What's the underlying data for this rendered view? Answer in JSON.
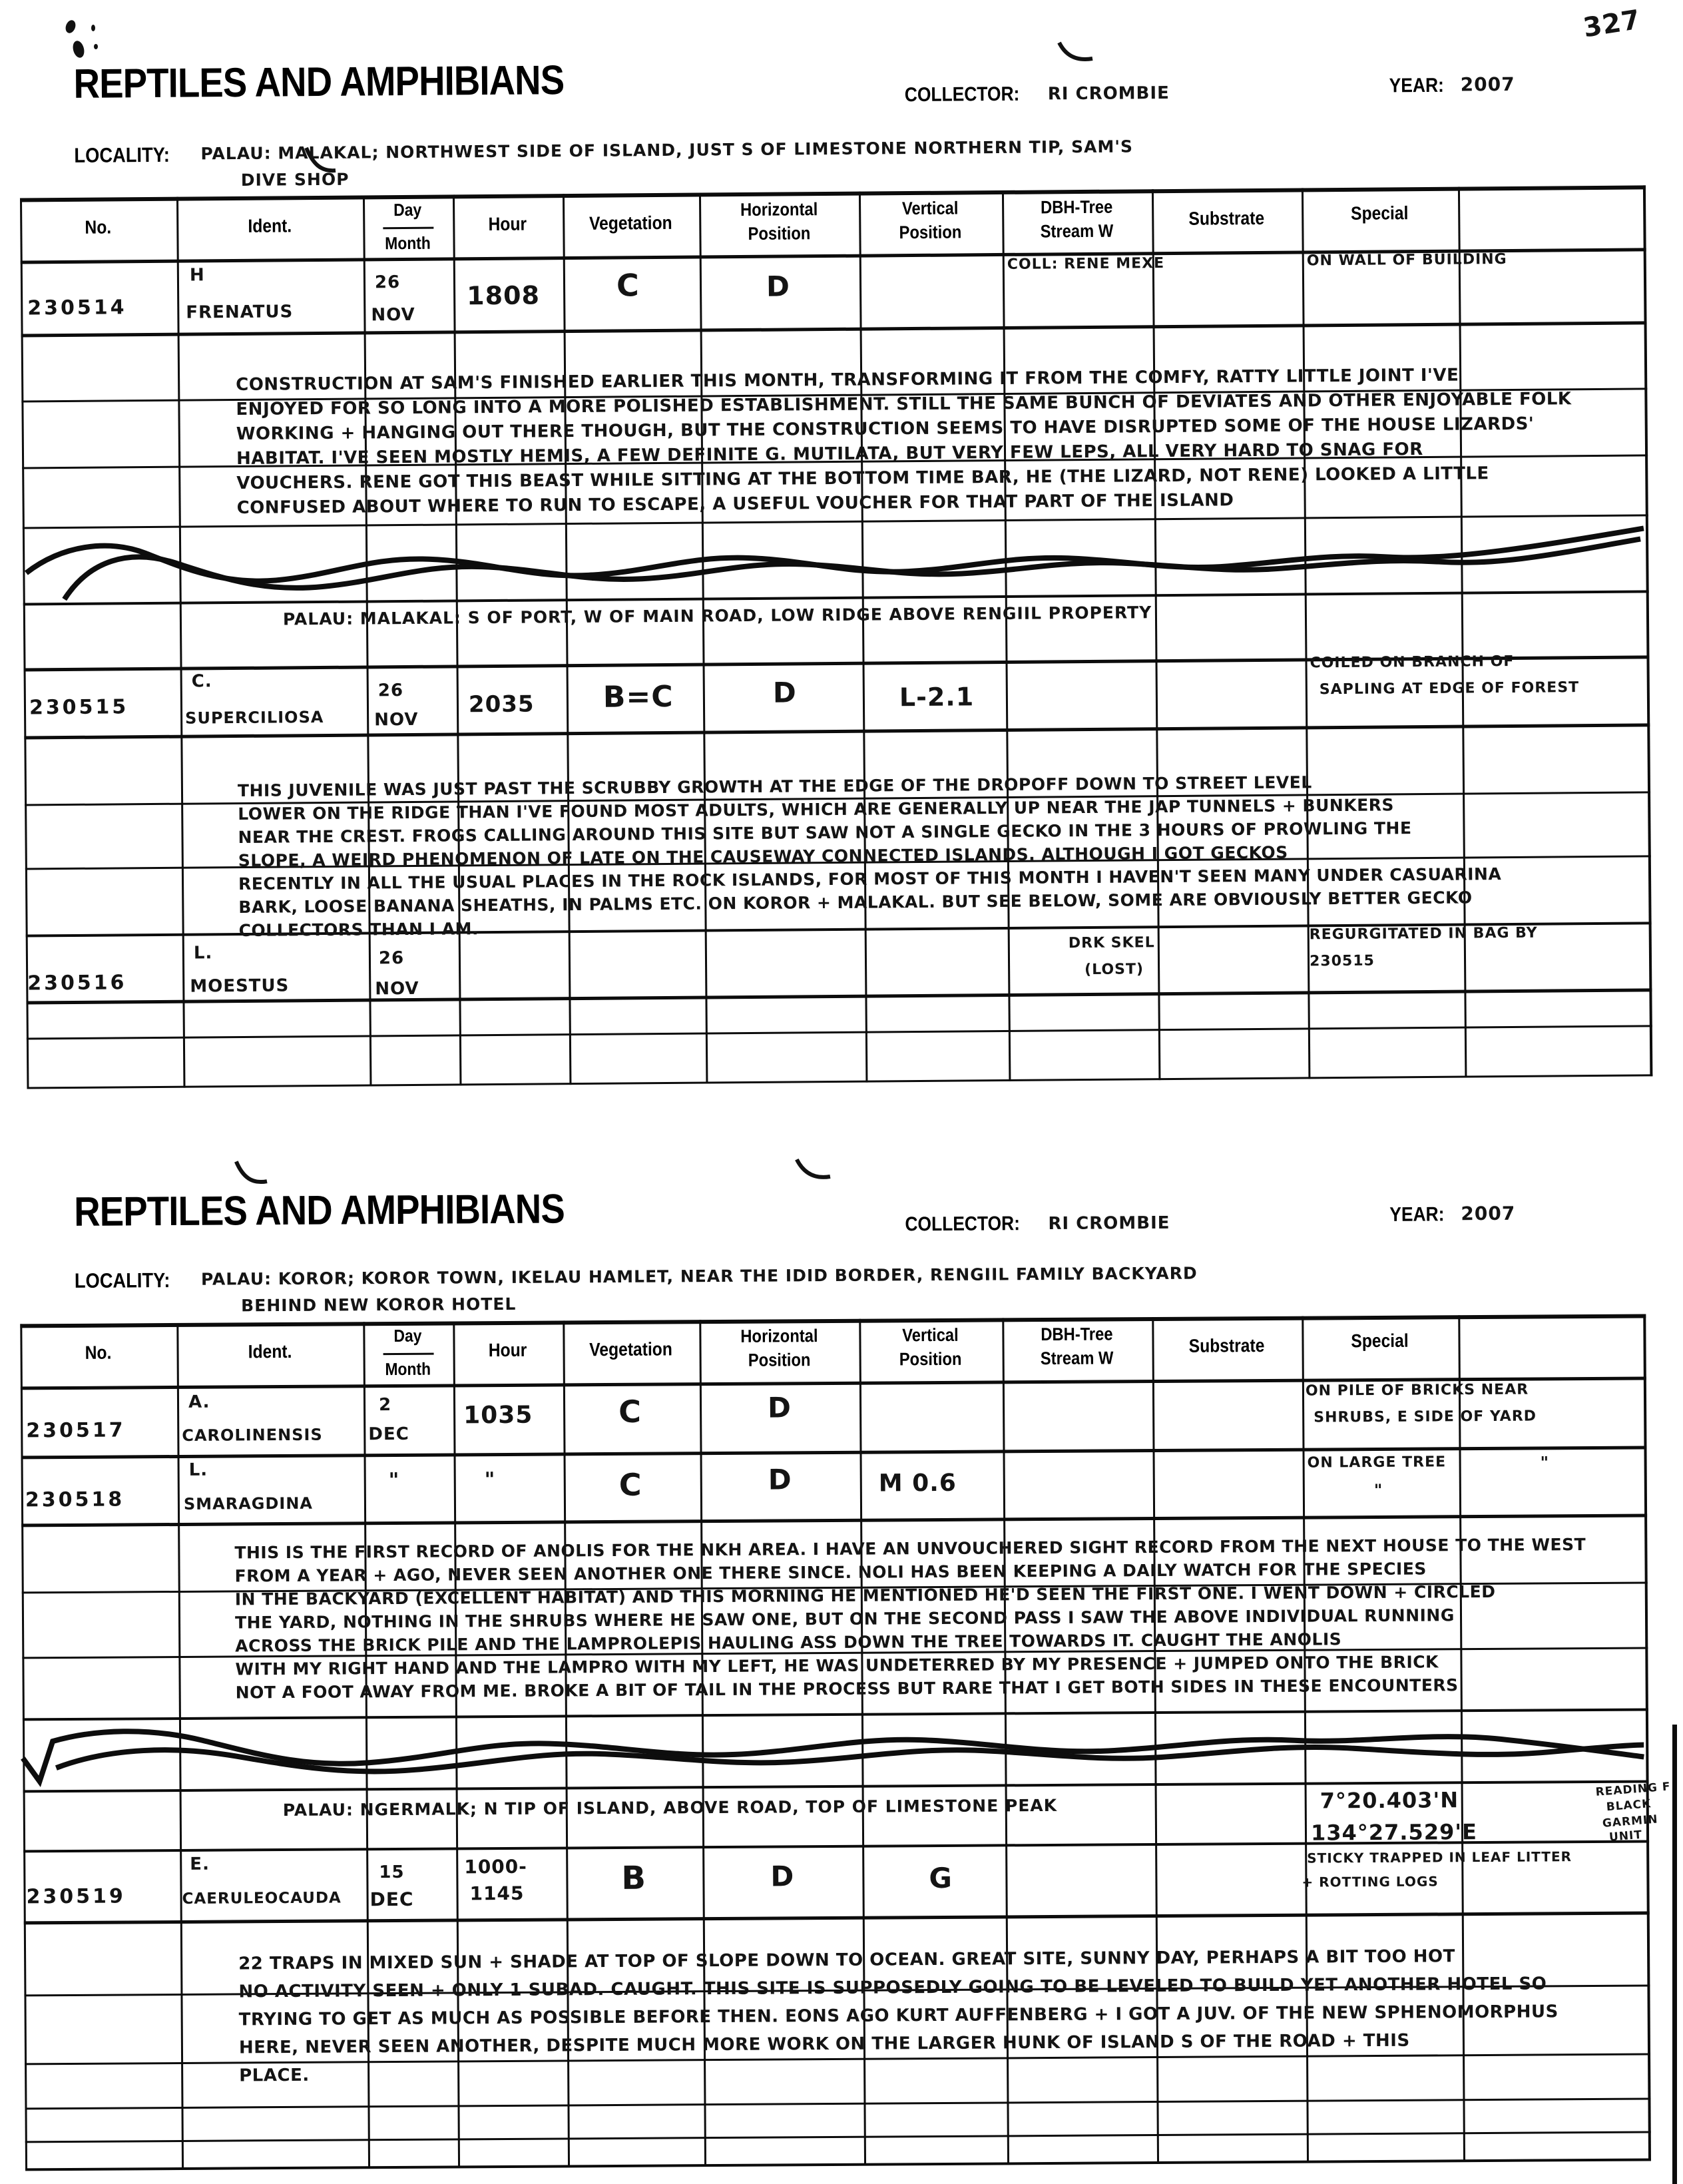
{
  "page": {
    "number": "327"
  },
  "cols": {
    "no": "No.",
    "ident": "Ident.",
    "day": "Day",
    "month": "Month",
    "hour": "Hour",
    "veg": "Vegetation",
    "hpos1": "Horizontal",
    "hpos2": "Position",
    "vpos1": "Vertical",
    "vpos2": "Position",
    "dbh1": "DBH-Tree",
    "dbh2": "Stream W",
    "substrate": "Substrate",
    "special": "Special"
  },
  "form1": {
    "title": "REPTILES AND AMPHIBIANS",
    "collector_label": "COLLECTOR:",
    "collector": "RI CROMBIE",
    "year_label": "YEAR:",
    "year": "2007",
    "locality_label": "LOCALITY:",
    "locality1": "PALAU: MALAKAL; NORTHWEST SIDE OF ISLAND, JUST S OF LIMESTONE NORTHERN TIP, SAM'S",
    "locality2": "DIVE SHOP",
    "r1": {
      "no": "230514",
      "sp1": "H",
      "sp2": "FRENATUS",
      "day": "26",
      "month": "NOV",
      "hour": "1808",
      "veg": "C",
      "hpos": "D",
      "dbh": "COLL: RENE MEXE",
      "special": "ON WALL OF BUILDING"
    },
    "notes1": [
      "CONSTRUCTION AT SAM'S FINISHED EARLIER THIS MONTH, TRANSFORMING IT FROM THE COMFY, RATTY LITTLE JOINT I'VE",
      "ENJOYED FOR SO LONG INTO A MORE POLISHED ESTABLISHMENT. STILL THE SAME BUNCH OF DEVIATES AND OTHER ENJOYABLE FOLK",
      "WORKING + HANGING OUT THERE THOUGH, BUT THE CONSTRUCTION SEEMS TO HAVE DISRUPTED SOME OF THE HOUSE LIZARDS'",
      "HABITAT. I'VE SEEN MOSTLY HEMIS, A FEW DEFINITE G. MUTILATA, BUT VERY FEW LEPS, ALL VERY HARD TO SNAG FOR",
      "VOUCHERS. RENE GOT THIS BEAST WHILE SITTING AT THE BOTTOM TIME BAR, HE (THE LIZARD, NOT RENE) LOOKED A LITTLE",
      "CONFUSED ABOUT WHERE TO RUN TO ESCAPE, A USEFUL VOUCHER FOR THAT PART OF THE ISLAND"
    ],
    "sub_locality": "PALAU: MALAKAL: S OF PORT, W OF MAIN ROAD, LOW RIDGE ABOVE RENGIIL PROPERTY",
    "r2": {
      "no": "230515",
      "sp1": "C.",
      "sp2": "SUPERCILIOSA",
      "day": "26",
      "month": "NOV",
      "hour": "2035",
      "veg": "B=C",
      "hpos": "D",
      "vpos": "L-2.1",
      "special1": "COILED ON BRANCH OF",
      "special2": "SAPLING AT EDGE OF FOREST"
    },
    "notes2": [
      "THIS JUVENILE WAS JUST PAST THE SCRUBBY GROWTH AT THE EDGE OF THE DROPOFF DOWN TO STREET LEVEL",
      "LOWER ON THE RIDGE THAN I'VE FOUND MOST ADULTS, WHICH ARE GENERALLY UP NEAR THE JAP TUNNELS + BUNKERS",
      "NEAR THE CREST. FROGS CALLING AROUND THIS SITE BUT SAW NOT A SINGLE GECKO IN THE 3 HOURS OF PROWLING THE",
      "SLOPE, A WEIRD PHENOMENON OF LATE ON THE CAUSEWAY CONNECTED ISLANDS. ALTHOUGH I GOT GECKOS",
      "RECENTLY IN ALL THE USUAL PLACES IN THE ROCK ISLANDS, FOR MOST OF THIS MONTH I HAVEN'T SEEN MANY UNDER CASUARINA",
      "BARK, LOOSE BANANA SHEATHS, IN PALMS ETC. ON KOROR + MALAKAL. BUT SEE BELOW, SOME ARE OBVIOUSLY BETTER GECKO",
      "COLLECTORS THAN I AM."
    ],
    "r3": {
      "no": "230516",
      "sp1": "L.",
      "sp2": "MOESTUS",
      "day": "26",
      "month": "NOV",
      "dbh1": "DRK SKEL",
      "dbh2": "(LOST)",
      "special1": "REGURGITATED IN BAG BY",
      "special2": "230515"
    }
  },
  "form2": {
    "title": "REPTILES AND AMPHIBIANS",
    "collector_label": "COLLECTOR:",
    "collector": "RI CROMBIE",
    "year_label": "YEAR:",
    "year": "2007",
    "locality_label": "LOCALITY:",
    "locality1": "PALAU: KOROR; KOROR TOWN, IKELAU HAMLET, NEAR THE IDID BORDER, RENGIIL FAMILY BACKYARD",
    "locality2": "BEHIND NEW KOROR HOTEL",
    "r1": {
      "no": "230517",
      "sp1": "A.",
      "sp2": "CAROLINENSIS",
      "day": "2",
      "month": "DEC",
      "hour": "1035",
      "veg": "C",
      "hpos": "D",
      "special1": "ON PILE OF BRICKS NEAR",
      "special2": "SHRUBS, E SIDE OF YARD"
    },
    "r2": {
      "no": "230518",
      "sp1": "L.",
      "sp2": "SMARAGDINA",
      "day_ditto": "\"",
      "hour_ditto": "\"",
      "veg": "C",
      "hpos": "D",
      "vpos": "M 0.6",
      "special1": "ON LARGE TREE",
      "special_ditto1": "\"",
      "special_ditto2": "\""
    },
    "notes1": [
      "THIS IS THE FIRST RECORD OF ANOLIS FOR THE NKH AREA. I HAVE AN UNVOUCHERED SIGHT RECORD FROM THE NEXT HOUSE TO THE WEST",
      "FROM A YEAR + AGO, NEVER SEEN ANOTHER ONE THERE SINCE. NOLI HAS BEEN KEEPING A DAILY WATCH FOR THE SPECIES",
      "IN THE BACKYARD (EXCELLENT HABITAT) AND THIS MORNING HE MENTIONED HE'D SEEN THE FIRST ONE. I WENT DOWN + CIRCLED",
      "THE YARD, NOTHING IN THE SHRUBS WHERE HE SAW ONE, BUT ON THE SECOND PASS I SAW THE ABOVE INDIVIDUAL RUNNING",
      "ACROSS THE BRICK PILE AND THE LAMPROLEPIS HAULING ASS DOWN THE TREE TOWARDS IT. CAUGHT THE ANOLIS",
      "WITH MY RIGHT HAND AND THE LAMPRO WITH MY LEFT, HE WAS UNDETERRED BY MY PRESENCE + JUMPED ONTO THE BRICK",
      "NOT A FOOT AWAY FROM ME. BROKE A BIT OF TAIL IN THE PROCESS BUT RARE THAT I GET BOTH SIDES IN THESE ENCOUNTERS"
    ],
    "sub_locality": "PALAU: NGERMALK; N TIP OF ISLAND, ABOVE ROAD, TOP OF LIMESTONE PEAK",
    "gps": {
      "lat": "7°20.403'N",
      "lon": "134°27.529'E",
      "note1": "READING F",
      "note2": "BLACK",
      "note3": "GARMIN",
      "note4": "UNIT"
    },
    "r3": {
      "no": "230519",
      "sp1": "E.",
      "sp2": "CAERULEOCAUDA",
      "day": "15",
      "month": "DEC",
      "hour1": "1000-",
      "hour2": "1145",
      "veg": "B",
      "hpos": "D",
      "vpos": "G",
      "special1": "STICKY TRAPPED IN LEAF LITTER",
      "special2": "+ ROTTING LOGS"
    },
    "notes2": [
      "22 TRAPS IN MIXED SUN + SHADE AT TOP OF SLOPE DOWN TO OCEAN. GREAT SITE, SUNNY DAY, PERHAPS A BIT TOO HOT",
      "NO ACTIVITY SEEN + ONLY 1 SUBAD. CAUGHT. THIS SITE IS SUPPOSEDLY GOING TO BE LEVELED TO BUILD YET ANOTHER HOTEL SO",
      "TRYING TO GET AS MUCH AS POSSIBLE BEFORE THEN. EONS AGO KURT AUFFENBERG + I GOT A JUV. OF THE NEW SPHENOMORPHUS",
      "HERE, NEVER SEEN ANOTHER, DESPITE MUCH MORE WORK ON THE LARGER HUNK OF ISLAND S OF THE ROAD + THIS",
      "PLACE."
    ]
  }
}
